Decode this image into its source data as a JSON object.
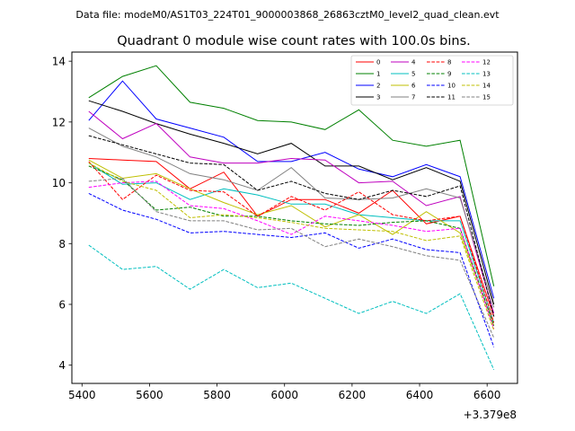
{
  "chart_data": {
    "type": "line",
    "suptitle": "Data file: modeM0/AS1T03_224T01_9000003868_26863cztM0_level2_quad_clean.evt",
    "title": "Quadrant 0 module wise count rates with 100.0s bins.",
    "xlabel": "",
    "ylabel": "",
    "offset_label": "+3.379e8",
    "xlim": [
      5370,
      6690
    ],
    "ylim": [
      3.4,
      14.3
    ],
    "xticks": [
      5400,
      5600,
      5800,
      6000,
      6200,
      6400,
      6600
    ],
    "yticks": [
      4,
      6,
      8,
      10,
      12,
      14
    ],
    "x": [
      5420,
      5520,
      5620,
      5720,
      5820,
      5920,
      6020,
      6120,
      6220,
      6320,
      6420,
      6520,
      6620
    ],
    "series": [
      {
        "name": "0",
        "color": "#ff0000",
        "dash": "solid",
        "values": [
          10.8,
          10.75,
          10.7,
          9.8,
          10.35,
          8.9,
          9.45,
          9.45,
          9.0,
          9.75,
          8.65,
          8.9,
          5.6
        ]
      },
      {
        "name": "1",
        "color": "#008000",
        "dash": "solid",
        "values": [
          12.8,
          13.5,
          13.85,
          12.65,
          12.45,
          12.05,
          12.0,
          11.75,
          12.4,
          11.4,
          11.2,
          11.4,
          6.6
        ]
      },
      {
        "name": "2",
        "color": "#0000ff",
        "dash": "solid",
        "values": [
          12.05,
          13.35,
          12.1,
          11.8,
          11.5,
          10.7,
          10.7,
          11.0,
          10.45,
          10.2,
          10.6,
          10.2,
          6.2
        ]
      },
      {
        "name": "3",
        "color": "#000000",
        "dash": "solid",
        "values": [
          12.7,
          12.35,
          11.95,
          11.6,
          11.3,
          10.95,
          11.3,
          10.55,
          10.55,
          10.1,
          10.5,
          10.05,
          6.0
        ]
      },
      {
        "name": "4",
        "color": "#bf00bf",
        "dash": "solid",
        "values": [
          12.35,
          11.45,
          11.95,
          10.85,
          10.65,
          10.65,
          10.8,
          10.75,
          10.0,
          10.05,
          9.25,
          9.55,
          5.7
        ]
      },
      {
        "name": "5",
        "color": "#00bfbf",
        "dash": "solid",
        "values": [
          10.65,
          9.95,
          10.0,
          9.45,
          9.8,
          9.6,
          9.3,
          9.3,
          8.95,
          8.85,
          8.75,
          8.75,
          5.4
        ]
      },
      {
        "name": "6",
        "color": "#bfbf00",
        "dash": "solid",
        "values": [
          10.75,
          10.15,
          10.3,
          9.8,
          9.35,
          8.95,
          9.25,
          8.55,
          8.95,
          8.3,
          9.05,
          8.35,
          5.3
        ]
      },
      {
        "name": "7",
        "color": "#808080",
        "dash": "solid",
        "values": [
          11.8,
          11.2,
          10.85,
          10.3,
          10.1,
          9.75,
          10.5,
          9.5,
          9.45,
          9.5,
          9.8,
          9.5,
          5.9
        ]
      },
      {
        "name": "8",
        "color": "#ff0000",
        "dash": "dashed",
        "values": [
          10.7,
          9.45,
          10.25,
          9.75,
          9.7,
          8.9,
          9.55,
          9.1,
          9.7,
          8.95,
          8.75,
          8.9,
          5.4
        ]
      },
      {
        "name": "9",
        "color": "#008000",
        "dash": "dashed",
        "values": [
          10.55,
          10.1,
          9.1,
          9.2,
          8.9,
          8.9,
          8.75,
          8.65,
          8.6,
          8.7,
          8.75,
          8.5,
          5.3
        ]
      },
      {
        "name": "10",
        "color": "#0000ff",
        "dash": "dashed",
        "values": [
          9.65,
          9.1,
          8.8,
          8.35,
          8.4,
          8.3,
          8.2,
          8.35,
          7.85,
          8.15,
          7.8,
          7.7,
          4.6
        ]
      },
      {
        "name": "11",
        "color": "#000000",
        "dash": "dashed",
        "values": [
          11.55,
          11.25,
          10.95,
          10.65,
          10.6,
          9.75,
          10.05,
          9.65,
          9.45,
          9.75,
          9.55,
          9.9,
          5.6
        ]
      },
      {
        "name": "12",
        "color": "#ff00ff",
        "dash": "dashed",
        "values": [
          9.85,
          10.0,
          10.05,
          9.25,
          9.15,
          8.75,
          8.3,
          8.9,
          8.75,
          8.6,
          8.4,
          8.5,
          5.2
        ]
      },
      {
        "name": "13",
        "color": "#00bfbf",
        "dash": "dashed",
        "values": [
          7.95,
          7.15,
          7.25,
          6.5,
          7.15,
          6.55,
          6.7,
          6.2,
          5.7,
          6.1,
          5.7,
          6.35,
          3.85
        ]
      },
      {
        "name": "14",
        "color": "#bfbf00",
        "dash": "dashed",
        "values": [
          10.65,
          10.05,
          9.75,
          8.85,
          8.95,
          8.85,
          8.7,
          8.5,
          8.45,
          8.4,
          8.1,
          8.25,
          5.15
        ]
      },
      {
        "name": "15",
        "color": "#808080",
        "dash": "dashed",
        "values": [
          10.05,
          10.15,
          9.05,
          8.75,
          8.75,
          8.45,
          8.5,
          7.9,
          8.15,
          7.9,
          7.6,
          7.45,
          4.9
        ]
      }
    ]
  }
}
